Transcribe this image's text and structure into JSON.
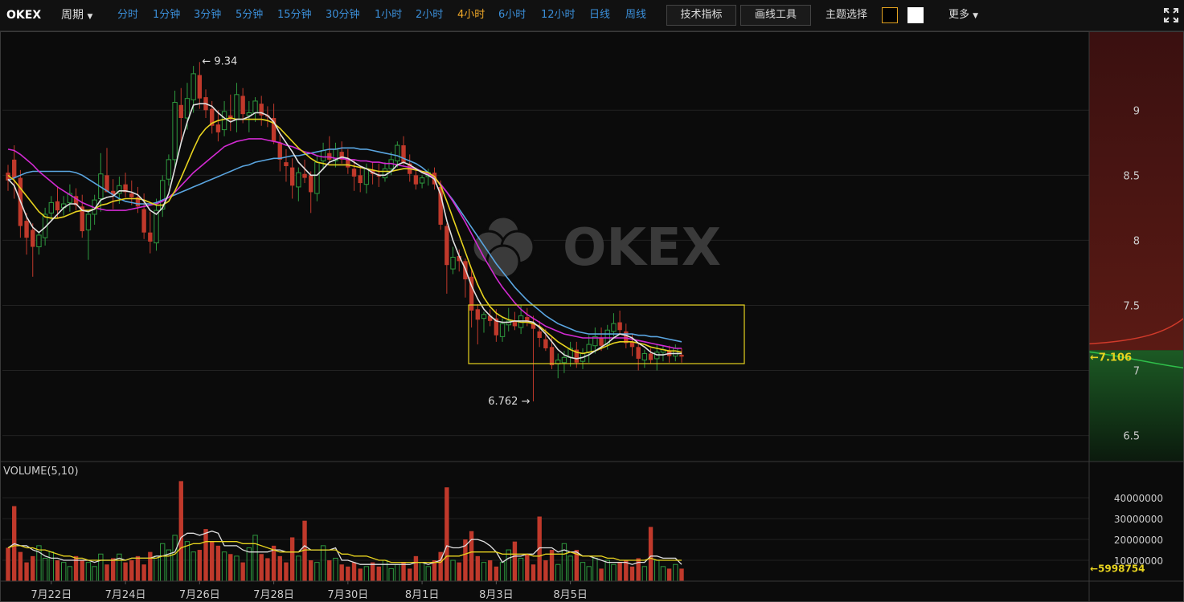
{
  "toolbar": {
    "brand": "OKEX",
    "period_label": "周期",
    "timeframes": [
      "分时",
      "1分钟",
      "3分钟",
      "5分钟",
      "15分钟",
      "30分钟",
      "1小时",
      "2小时",
      "4小时",
      "6小时",
      "12小时",
      "日线",
      "周线"
    ],
    "active_timeframe": "4小时",
    "indicators_button": "技术指标",
    "drawing_button": "画线工具",
    "theme_label": "主题选择",
    "more_label": "更多"
  },
  "colors": {
    "up": "#2e9a3f",
    "down": "#c0392b",
    "ma_white": "#e0e0e0",
    "ma_yellow": "#e7d31f",
    "ma_magenta": "#d22ad2",
    "ma_blue": "#5aa5e0",
    "active_tab": "#f0a828",
    "tab": "#3b8fd9",
    "theme_dark": "#000000",
    "theme_light": "#ffffff"
  },
  "chart_data": {
    "type": "candlestick",
    "watermark": "OKEX",
    "price_axis_ticks": [
      9,
      8.5,
      8,
      7.5,
      7,
      6.5
    ],
    "ylim": [
      6.3,
      9.6
    ],
    "x_tick_labels": [
      "7月22日",
      "7月24日",
      "7月26日",
      "7月28日",
      "7月30日",
      "8月1日",
      "8月3日",
      "8月5日"
    ],
    "max_annotation": "9.34",
    "min_annotation": "6.762",
    "last_price": "7.106",
    "volume_label": "VOLUME(5,10)",
    "volume_ticks": [
      "40000000",
      "30000000",
      "20000000",
      "10000000"
    ],
    "volume_ylim": [
      0,
      52000000
    ],
    "last_volume": "5998754",
    "candles_ohlc": [
      [
        8.52,
        8.58,
        8.38,
        8.46
      ],
      [
        8.62,
        8.73,
        8.32,
        8.48
      ],
      [
        8.48,
        8.54,
        8.02,
        8.11
      ],
      [
        8.15,
        8.21,
        7.89,
        8.02
      ],
      [
        8.08,
        8.13,
        7.72,
        7.95
      ],
      [
        7.95,
        8.07,
        7.89,
        8.04
      ],
      [
        8.02,
        8.25,
        7.96,
        8.2
      ],
      [
        8.21,
        8.34,
        8.15,
        8.29
      ],
      [
        8.3,
        8.41,
        8.17,
        8.23
      ],
      [
        8.25,
        8.34,
        8.19,
        8.28
      ],
      [
        8.29,
        8.43,
        8.22,
        8.36
      ],
      [
        8.34,
        8.4,
        8.23,
        8.27
      ],
      [
        8.26,
        8.35,
        8.02,
        8.07
      ],
      [
        8.08,
        8.22,
        7.85,
        8.2
      ],
      [
        8.2,
        8.35,
        8.12,
        8.31
      ],
      [
        8.32,
        8.67,
        8.22,
        8.51
      ],
      [
        8.5,
        8.71,
        8.39,
        8.37
      ],
      [
        8.38,
        8.47,
        8.24,
        8.35
      ],
      [
        8.36,
        8.49,
        8.28,
        8.42
      ],
      [
        8.43,
        8.52,
        8.33,
        8.37
      ],
      [
        8.36,
        8.46,
        8.27,
        8.33
      ],
      [
        8.33,
        8.41,
        8.21,
        8.26
      ],
      [
        8.24,
        8.36,
        8.01,
        8.06
      ],
      [
        8.06,
        8.22,
        7.9,
        7.99
      ],
      [
        7.98,
        8.32,
        7.92,
        8.23
      ],
      [
        8.24,
        8.5,
        8.18,
        8.46
      ],
      [
        8.47,
        8.66,
        8.42,
        8.62
      ],
      [
        8.62,
        9.15,
        8.55,
        9.06
      ],
      [
        9.04,
        9.17,
        8.75,
        8.94
      ],
      [
        8.94,
        9.21,
        8.85,
        9.09
      ],
      [
        9.08,
        9.34,
        8.98,
        9.28
      ],
      [
        9.27,
        9.37,
        9.01,
        9.09
      ],
      [
        9.1,
        9.16,
        8.94,
        9.0
      ],
      [
        9.01,
        9.07,
        8.82,
        8.88
      ],
      [
        8.89,
        9.0,
        8.76,
        8.83
      ],
      [
        8.85,
        9.07,
        8.8,
        8.99
      ],
      [
        8.96,
        9.12,
        8.84,
        8.93
      ],
      [
        8.93,
        9.21,
        8.83,
        9.12
      ],
      [
        9.11,
        9.17,
        8.9,
        8.97
      ],
      [
        8.96,
        9.07,
        8.83,
        8.98
      ],
      [
        8.98,
        9.1,
        8.91,
        9.07
      ],
      [
        9.05,
        9.11,
        8.88,
        8.96
      ],
      [
        8.96,
        9.03,
        8.87,
        8.95
      ],
      [
        8.94,
        9.05,
        8.74,
        8.76
      ],
      [
        8.75,
        8.81,
        8.53,
        8.62
      ],
      [
        8.6,
        8.7,
        8.45,
        8.57
      ],
      [
        8.56,
        8.63,
        8.32,
        8.42
      ],
      [
        8.41,
        8.56,
        8.3,
        8.52
      ],
      [
        8.51,
        8.62,
        8.44,
        8.48
      ],
      [
        8.5,
        8.53,
        8.21,
        8.37
      ],
      [
        8.36,
        8.65,
        8.3,
        8.6
      ],
      [
        8.61,
        8.75,
        8.54,
        8.69
      ],
      [
        8.67,
        8.8,
        8.6,
        8.62
      ],
      [
        8.61,
        8.75,
        8.56,
        8.7
      ],
      [
        8.68,
        8.76,
        8.59,
        8.62
      ],
      [
        8.63,
        8.7,
        8.51,
        8.56
      ],
      [
        8.55,
        8.62,
        8.38,
        8.49
      ],
      [
        8.5,
        8.56,
        8.37,
        8.44
      ],
      [
        8.43,
        8.59,
        8.36,
        8.55
      ],
      [
        8.54,
        8.6,
        8.43,
        8.51
      ],
      [
        8.5,
        8.59,
        8.41,
        8.49
      ],
      [
        8.48,
        8.6,
        8.45,
        8.55
      ],
      [
        8.55,
        8.68,
        8.5,
        8.62
      ],
      [
        8.61,
        8.76,
        8.56,
        8.73
      ],
      [
        8.73,
        8.8,
        8.58,
        8.6
      ],
      [
        8.59,
        8.66,
        8.45,
        8.51
      ],
      [
        8.5,
        8.56,
        8.39,
        8.43
      ],
      [
        8.44,
        8.5,
        8.4,
        8.48
      ],
      [
        8.49,
        8.55,
        8.42,
        8.52
      ],
      [
        8.52,
        8.56,
        8.39,
        8.43
      ],
      [
        8.41,
        8.46,
        8.08,
        8.12
      ],
      [
        8.11,
        8.13,
        7.59,
        7.81
      ],
      [
        7.78,
        7.95,
        7.74,
        7.87
      ],
      [
        7.88,
        7.93,
        7.76,
        7.84
      ],
      [
        7.84,
        7.86,
        7.56,
        7.7
      ],
      [
        7.72,
        7.77,
        7.33,
        7.46
      ],
      [
        7.47,
        7.51,
        7.2,
        7.39
      ],
      [
        7.4,
        7.45,
        7.29,
        7.43
      ],
      [
        7.42,
        7.47,
        7.34,
        7.38
      ],
      [
        7.4,
        7.47,
        7.22,
        7.27
      ],
      [
        7.26,
        7.4,
        7.22,
        7.36
      ],
      [
        7.35,
        7.48,
        7.3,
        7.38
      ],
      [
        7.38,
        7.45,
        7.31,
        7.34
      ],
      [
        7.33,
        7.5,
        7.28,
        7.42
      ],
      [
        7.41,
        7.48,
        7.34,
        7.37
      ],
      [
        7.36,
        7.42,
        6.762,
        7.32
      ],
      [
        7.3,
        7.38,
        7.18,
        7.25
      ],
      [
        7.24,
        7.32,
        7.15,
        7.17
      ],
      [
        7.18,
        7.26,
        7.01,
        7.04
      ],
      [
        7.05,
        7.13,
        6.94,
        7.08
      ],
      [
        7.06,
        7.15,
        6.98,
        7.1
      ],
      [
        7.1,
        7.22,
        7.03,
        7.17
      ],
      [
        7.16,
        7.22,
        7.02,
        7.06
      ],
      [
        7.07,
        7.17,
        7.01,
        7.13
      ],
      [
        7.14,
        7.27,
        7.06,
        7.2
      ],
      [
        7.19,
        7.33,
        7.13,
        7.26
      ],
      [
        7.25,
        7.33,
        7.15,
        7.19
      ],
      [
        7.2,
        7.35,
        7.16,
        7.31
      ],
      [
        7.3,
        7.44,
        7.26,
        7.36
      ],
      [
        7.37,
        7.46,
        7.28,
        7.31
      ],
      [
        7.3,
        7.36,
        7.17,
        7.21
      ],
      [
        7.22,
        7.28,
        7.11,
        7.18
      ],
      [
        7.18,
        7.21,
        7.0,
        7.09
      ],
      [
        7.08,
        7.16,
        7.02,
        7.13
      ],
      [
        7.13,
        7.17,
        7.05,
        7.08
      ],
      [
        7.09,
        7.2,
        7.0,
        7.14
      ],
      [
        7.14,
        7.19,
        7.07,
        7.16
      ],
      [
        7.15,
        7.19,
        7.06,
        7.11
      ],
      [
        7.11,
        7.2,
        7.07,
        7.17
      ],
      [
        7.12,
        7.17,
        7.06,
        7.106
      ]
    ],
    "volumes": [
      16,
      36,
      14,
      9,
      12,
      17,
      11,
      14,
      10,
      9,
      7,
      12,
      10,
      9,
      7,
      13,
      8,
      11,
      13,
      9,
      10,
      12,
      8,
      14,
      12,
      18,
      15,
      22,
      48,
      19,
      14,
      15,
      25,
      19,
      17,
      14,
      13,
      12,
      9,
      16,
      22,
      13,
      11,
      17,
      12,
      9,
      21,
      12,
      29,
      10,
      9,
      17,
      10,
      11,
      8,
      7,
      9,
      6,
      7,
      9,
      7,
      10,
      6,
      8,
      9,
      6,
      12,
      9,
      7,
      10,
      14,
      45,
      10,
      9,
      20,
      24,
      12,
      9,
      10,
      7,
      9,
      15,
      19,
      11,
      13,
      8,
      31,
      10,
      15,
      8,
      18,
      12,
      15,
      9,
      7,
      11,
      6,
      10,
      8,
      9,
      10,
      7,
      11,
      7,
      26,
      10,
      7,
      6,
      8,
      6
    ],
    "ma_white": [
      8.47,
      8.42,
      8.3,
      8.18,
      8.1,
      8.06,
      8.1,
      8.15,
      8.2,
      8.25,
      8.28,
      8.28,
      8.23,
      8.22,
      8.24,
      8.31,
      8.33,
      8.34,
      8.38,
      8.38,
      8.37,
      8.35,
      8.3,
      8.23,
      8.2,
      8.25,
      8.36,
      8.55,
      8.75,
      8.91,
      9.04,
      9.05,
      9.05,
      9.03,
      8.98,
      8.94,
      8.91,
      8.93,
      8.93,
      8.95,
      8.98,
      8.98,
      8.96,
      8.91,
      8.82,
      8.75,
      8.68,
      8.6,
      8.55,
      8.5,
      8.5,
      8.55,
      8.6,
      8.62,
      8.64,
      8.63,
      8.6,
      8.57,
      8.55,
      8.52,
      8.5,
      8.5,
      8.53,
      8.58,
      8.6,
      8.58,
      8.55,
      8.52,
      8.5,
      8.47,
      8.35,
      8.15,
      8.0,
      7.88,
      7.78,
      7.65,
      7.55,
      7.47,
      7.42,
      7.38,
      7.37,
      7.37,
      7.38,
      7.38,
      7.38,
      7.37,
      7.33,
      7.28,
      7.22,
      7.16,
      7.12,
      7.1,
      7.09,
      7.1,
      7.12,
      7.15,
      7.18,
      7.21,
      7.25,
      7.28,
      7.27,
      7.25,
      7.21,
      7.18,
      7.14,
      7.12,
      7.12,
      7.13,
      7.13,
      7.13
    ],
    "ma_yellow": [
      8.5,
      8.46,
      8.4,
      8.34,
      8.28,
      8.22,
      8.18,
      8.17,
      8.17,
      8.18,
      8.2,
      8.22,
      8.23,
      8.23,
      8.24,
      8.27,
      8.28,
      8.3,
      8.31,
      8.32,
      8.32,
      8.32,
      8.31,
      8.29,
      8.27,
      8.27,
      8.3,
      8.38,
      8.48,
      8.59,
      8.7,
      8.8,
      8.86,
      8.9,
      8.92,
      8.93,
      8.94,
      8.93,
      8.93,
      8.93,
      8.93,
      8.93,
      8.92,
      8.9,
      8.86,
      8.81,
      8.76,
      8.71,
      8.67,
      8.63,
      8.6,
      8.59,
      8.58,
      8.58,
      8.58,
      8.58,
      8.57,
      8.56,
      8.55,
      8.54,
      8.53,
      8.53,
      8.53,
      8.54,
      8.55,
      8.55,
      8.54,
      8.53,
      8.52,
      8.49,
      8.42,
      8.3,
      8.17,
      8.04,
      7.91,
      7.78,
      7.66,
      7.56,
      7.49,
      7.44,
      7.41,
      7.39,
      7.38,
      7.37,
      7.37,
      7.36,
      7.34,
      7.3,
      7.26,
      7.22,
      7.19,
      7.16,
      7.14,
      7.13,
      7.14,
      7.15,
      7.17,
      7.19,
      7.21,
      7.22,
      7.22,
      7.22,
      7.21,
      7.2,
      7.18,
      7.17,
      7.16,
      7.15,
      7.15,
      7.14
    ],
    "ma_magenta": [
      8.7,
      8.69,
      8.66,
      8.62,
      8.58,
      8.53,
      8.49,
      8.45,
      8.41,
      8.38,
      8.35,
      8.32,
      8.29,
      8.27,
      8.25,
      8.24,
      8.23,
      8.23,
      8.23,
      8.23,
      8.24,
      8.25,
      8.26,
      8.27,
      8.28,
      8.3,
      8.33,
      8.37,
      8.42,
      8.47,
      8.52,
      8.56,
      8.6,
      8.64,
      8.68,
      8.72,
      8.74,
      8.76,
      8.77,
      8.78,
      8.78,
      8.78,
      8.77,
      8.76,
      8.75,
      8.73,
      8.72,
      8.7,
      8.68,
      8.67,
      8.65,
      8.64,
      8.64,
      8.63,
      8.63,
      8.62,
      8.62,
      8.61,
      8.61,
      8.6,
      8.6,
      8.59,
      8.59,
      8.58,
      8.57,
      8.56,
      8.55,
      8.53,
      8.51,
      8.48,
      8.43,
      8.37,
      8.3,
      8.22,
      8.14,
      8.05,
      7.96,
      7.87,
      7.79,
      7.71,
      7.64,
      7.58,
      7.52,
      7.47,
      7.43,
      7.4,
      7.37,
      7.34,
      7.32,
      7.3,
      7.28,
      7.27,
      7.26,
      7.25,
      7.25,
      7.25,
      7.25,
      7.25,
      7.25,
      7.25,
      7.25,
      7.24,
      7.23,
      7.22,
      7.21,
      7.2,
      7.19,
      7.18,
      7.17,
      7.17
    ],
    "ma_blue": [
      8.46,
      8.48,
      8.5,
      8.52,
      8.53,
      8.53,
      8.53,
      8.53,
      8.53,
      8.53,
      8.53,
      8.52,
      8.5,
      8.47,
      8.44,
      8.41,
      8.38,
      8.35,
      8.32,
      8.3,
      8.29,
      8.28,
      8.28,
      8.28,
      8.29,
      8.31,
      8.33,
      8.35,
      8.37,
      8.39,
      8.41,
      8.43,
      8.45,
      8.47,
      8.49,
      8.51,
      8.53,
      8.55,
      8.57,
      8.58,
      8.6,
      8.61,
      8.62,
      8.63,
      8.63,
      8.64,
      8.65,
      8.65,
      8.66,
      8.67,
      8.68,
      8.69,
      8.7,
      8.7,
      8.71,
      8.71,
      8.71,
      8.7,
      8.7,
      8.69,
      8.68,
      8.67,
      8.66,
      8.65,
      8.63,
      8.61,
      8.59,
      8.56,
      8.52,
      8.48,
      8.43,
      8.37,
      8.31,
      8.24,
      8.17,
      8.1,
      8.03,
      7.96,
      7.89,
      7.82,
      7.76,
      7.7,
      7.64,
      7.59,
      7.54,
      7.5,
      7.46,
      7.42,
      7.39,
      7.36,
      7.34,
      7.32,
      7.3,
      7.29,
      7.28,
      7.28,
      7.28,
      7.28,
      7.28,
      7.28,
      7.28,
      7.28,
      7.27,
      7.27,
      7.26,
      7.26,
      7.25,
      7.24,
      7.23,
      7.22
    ],
    "vol_ma5": [
      16,
      18,
      17,
      17,
      15,
      14,
      12,
      11,
      11,
      10,
      10,
      10,
      10,
      10,
      9,
      10,
      10,
      10,
      11,
      10,
      11,
      11,
      11,
      11,
      12,
      12,
      13,
      14,
      21,
      23,
      23,
      22,
      23,
      24,
      23,
      17,
      17,
      17,
      15,
      14,
      14,
      14,
      14,
      15,
      15,
      14,
      14,
      14,
      17,
      15,
      15,
      15,
      15,
      16,
      10,
      10,
      9,
      8,
      8,
      8,
      8,
      8,
      8,
      8,
      8,
      8,
      9,
      9,
      8,
      9,
      10,
      17,
      16,
      16,
      17,
      20,
      20,
      19,
      17,
      14,
      9,
      11,
      12,
      12,
      13,
      13,
      16,
      16,
      16,
      14,
      15,
      14,
      14,
      12,
      12,
      11,
      10,
      9,
      9,
      9,
      9,
      8,
      9,
      9,
      12,
      12,
      11,
      11,
      11,
      8
    ],
    "vol_ma10": [
      16,
      17,
      17,
      16,
      16,
      15,
      15,
      14,
      13,
      12,
      12,
      11,
      11,
      10,
      10,
      10,
      10,
      10,
      10,
      10,
      11,
      11,
      11,
      11,
      11,
      12,
      12,
      13,
      16,
      17,
      18,
      18,
      19,
      19,
      19,
      19,
      19,
      19,
      18,
      18,
      18,
      17,
      16,
      15,
      14,
      14,
      14,
      14,
      15,
      15,
      15,
      15,
      15,
      15,
      13,
      13,
      12,
      12,
      12,
      11,
      10,
      10,
      9,
      9,
      9,
      9,
      9,
      9,
      9,
      9,
      9,
      12,
      12,
      12,
      13,
      14,
      14,
      14,
      14,
      14,
      13,
      13,
      13,
      13,
      13,
      12,
      12,
      13,
      13,
      13,
      13,
      14,
      13,
      12,
      12,
      12,
      12,
      11,
      11,
      10,
      10,
      10,
      10,
      10,
      11,
      10,
      10,
      10,
      10,
      10
    ]
  }
}
